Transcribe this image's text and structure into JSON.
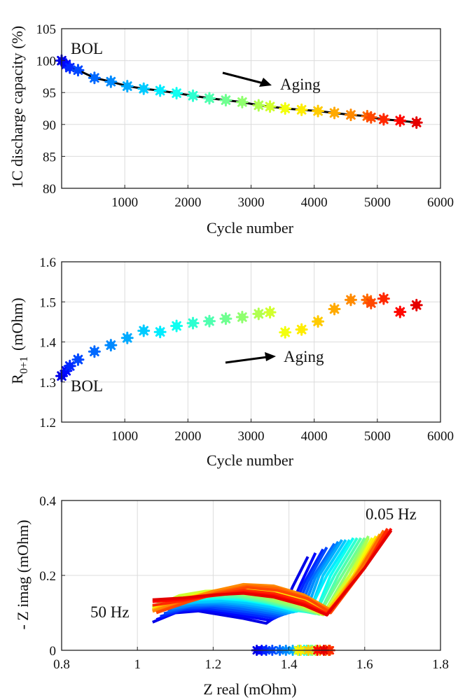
{
  "colors": {
    "bol": "#1010c8",
    "aging": "#ff2a00",
    "baseline": "#000000",
    "jet_scale": [
      "#00008f",
      "#0000ff",
      "#0080ff",
      "#00ffff",
      "#80ff80",
      "#ffff00",
      "#ff8000",
      "#ff0000",
      "#800000"
    ]
  },
  "marker_icon": "asterisk-marker",
  "chart_data": [
    {
      "type": "scatter",
      "xlabel": "Cycle number",
      "ylabel": "1C discharge capacity (%)",
      "xlim": [
        0,
        6000
      ],
      "ylim": [
        80,
        105
      ],
      "xticks": [
        "1000",
        "2000",
        "3000",
        "4000",
        "5000",
        "6000"
      ],
      "yticks": [
        "80",
        "85",
        "90",
        "95",
        "100",
        "105"
      ],
      "grid": true,
      "line": "black line through points",
      "x": [
        0,
        70,
        130,
        260,
        520,
        780,
        1040,
        1300,
        1560,
        1820,
        2080,
        2340,
        2600,
        2860,
        3120,
        3300,
        3540,
        3800,
        4060,
        4320,
        4580,
        4840,
        4900,
        5100,
        5360,
        5620
      ],
      "y": [
        100.0,
        99.4,
        98.9,
        98.5,
        97.3,
        96.7,
        96.0,
        95.6,
        95.3,
        94.9,
        94.5,
        94.1,
        93.8,
        93.5,
        93.0,
        92.8,
        92.5,
        92.3,
        92.1,
        91.8,
        91.5,
        91.3,
        91.1,
        90.8,
        90.6,
        90.3
      ],
      "annotations": [
        {
          "text": "BOL",
          "color": "#1010c8"
        },
        {
          "text": "Aging",
          "color": "#ff2a00"
        }
      ]
    },
    {
      "type": "scatter",
      "xlabel": "Cycle number",
      "ylabel_main": "R",
      "ylabel_sub": "0+1",
      "ylabel_unit": "(mOhm)",
      "xlim": [
        0,
        6000
      ],
      "ylim": [
        1.2,
        1.6
      ],
      "xticks": [
        "1000",
        "2000",
        "3000",
        "4000",
        "5000",
        "6000"
      ],
      "yticks": [
        "1.2",
        "1.3",
        "1.4",
        "1.5",
        "1.6"
      ],
      "grid": true,
      "x": [
        0,
        70,
        130,
        260,
        520,
        780,
        1040,
        1300,
        1560,
        1820,
        2080,
        2340,
        2600,
        2860,
        3120,
        3300,
        3540,
        3800,
        4060,
        4320,
        4580,
        4840,
        4900,
        5100,
        5360,
        5620
      ],
      "y": [
        1.315,
        1.328,
        1.34,
        1.356,
        1.376,
        1.392,
        1.41,
        1.428,
        1.425,
        1.44,
        1.447,
        1.452,
        1.458,
        1.462,
        1.47,
        1.474,
        1.424,
        1.431,
        1.451,
        1.482,
        1.505,
        1.505,
        1.497,
        1.508,
        1.475,
        1.492
      ],
      "annotations": [
        {
          "text": "BOL",
          "color": "#1010c8"
        },
        {
          "text": "Aging",
          "color": "#ff2a00"
        }
      ]
    },
    {
      "type": "line",
      "xlabel": "Z real (mOhm)",
      "ylabel": "- Z imag (mOhm)",
      "xlim": [
        0.8,
        1.8
      ],
      "ylim": [
        0,
        0.4
      ],
      "xticks": [
        "0.8",
        "1",
        "1.2",
        "1.4",
        "1.6",
        "1.8"
      ],
      "yticks": [
        "0",
        "0.2",
        "0.4"
      ],
      "grid": true,
      "series_count": 26,
      "series": [
        {
          "x": [
            1.04,
            1.1,
            1.16,
            1.22,
            1.28,
            1.34,
            1.38,
            1.41,
            1.45
          ],
          "y": [
            0.075,
            0.1,
            0.105,
            0.095,
            0.085,
            0.072,
            0.1,
            0.17,
            0.25
          ]
        },
        {
          "x": [
            1.05,
            1.11,
            1.17,
            1.23,
            1.29,
            1.35,
            1.4,
            1.43,
            1.47
          ],
          "y": [
            0.082,
            0.104,
            0.108,
            0.1,
            0.09,
            0.08,
            0.105,
            0.175,
            0.26
          ]
        },
        {
          "x": [
            1.06,
            1.12,
            1.18,
            1.24,
            1.3,
            1.36,
            1.41,
            1.44,
            1.49
          ],
          "y": [
            0.09,
            0.108,
            0.112,
            0.104,
            0.095,
            0.086,
            0.108,
            0.18,
            0.27
          ]
        },
        {
          "x": [
            1.07,
            1.13,
            1.19,
            1.25,
            1.31,
            1.37,
            1.42,
            1.45,
            1.5
          ],
          "y": [
            0.098,
            0.113,
            0.116,
            0.108,
            0.1,
            0.09,
            0.11,
            0.185,
            0.275
          ]
        },
        {
          "x": [
            1.08,
            1.14,
            1.2,
            1.26,
            1.32,
            1.38,
            1.43,
            1.46,
            1.52
          ],
          "y": [
            0.105,
            0.118,
            0.12,
            0.113,
            0.104,
            0.094,
            0.112,
            0.19,
            0.285
          ]
        },
        {
          "x": [
            1.09,
            1.15,
            1.21,
            1.27,
            1.33,
            1.39,
            1.44,
            1.47,
            1.53
          ],
          "y": [
            0.112,
            0.122,
            0.124,
            0.118,
            0.108,
            0.097,
            0.115,
            0.195,
            0.29
          ]
        },
        {
          "x": [
            1.1,
            1.16,
            1.22,
            1.28,
            1.34,
            1.4,
            1.45,
            1.48,
            1.54
          ],
          "y": [
            0.12,
            0.127,
            0.128,
            0.122,
            0.112,
            0.1,
            0.116,
            0.2,
            0.295
          ]
        },
        {
          "x": [
            1.1,
            1.17,
            1.23,
            1.29,
            1.35,
            1.41,
            1.46,
            1.49,
            1.55
          ],
          "y": [
            0.125,
            0.13,
            0.132,
            0.126,
            0.116,
            0.102,
            0.117,
            0.2,
            0.295
          ]
        },
        {
          "x": [
            1.08,
            1.15,
            1.22,
            1.29,
            1.36,
            1.42,
            1.46,
            1.5,
            1.56
          ],
          "y": [
            0.13,
            0.135,
            0.138,
            0.132,
            0.12,
            0.104,
            0.118,
            0.2,
            0.295
          ]
        },
        {
          "x": [
            1.07,
            1.14,
            1.21,
            1.28,
            1.35,
            1.42,
            1.47,
            1.51,
            1.57
          ],
          "y": [
            0.128,
            0.138,
            0.14,
            0.136,
            0.124,
            0.106,
            0.1,
            0.2,
            0.3
          ]
        },
        {
          "x": [
            1.06,
            1.13,
            1.2,
            1.27,
            1.34,
            1.41,
            1.47,
            1.52,
            1.58
          ],
          "y": [
            0.125,
            0.14,
            0.143,
            0.14,
            0.128,
            0.11,
            0.098,
            0.2,
            0.3
          ]
        },
        {
          "x": [
            1.05,
            1.12,
            1.19,
            1.26,
            1.33,
            1.41,
            1.48,
            1.53,
            1.59
          ],
          "y": [
            0.122,
            0.142,
            0.146,
            0.144,
            0.132,
            0.114,
            0.097,
            0.2,
            0.3
          ]
        },
        {
          "x": [
            1.05,
            1.12,
            1.19,
            1.26,
            1.33,
            1.41,
            1.48,
            1.54,
            1.6
          ],
          "y": [
            0.12,
            0.143,
            0.149,
            0.148,
            0.136,
            0.117,
            0.096,
            0.2,
            0.3
          ]
        },
        {
          "x": [
            1.04,
            1.11,
            1.18,
            1.26,
            1.33,
            1.41,
            1.49,
            1.55,
            1.61
          ],
          "y": [
            0.118,
            0.144,
            0.152,
            0.152,
            0.14,
            0.12,
            0.095,
            0.2,
            0.305
          ]
        },
        {
          "x": [
            1.04,
            1.11,
            1.18,
            1.26,
            1.34,
            1.42,
            1.49,
            1.56,
            1.61
          ],
          "y": [
            0.116,
            0.145,
            0.155,
            0.156,
            0.144,
            0.123,
            0.095,
            0.2,
            0.3
          ]
        },
        {
          "x": [
            1.04,
            1.11,
            1.18,
            1.26,
            1.34,
            1.42,
            1.49,
            1.56,
            1.62
          ],
          "y": [
            0.114,
            0.146,
            0.158,
            0.16,
            0.148,
            0.126,
            0.095,
            0.2,
            0.3
          ]
        },
        {
          "x": [
            1.05,
            1.12,
            1.19,
            1.27,
            1.35,
            1.43,
            1.5,
            1.57,
            1.62
          ],
          "y": [
            0.112,
            0.14,
            0.156,
            0.165,
            0.155,
            0.132,
            0.1,
            0.2,
            0.3
          ]
        },
        {
          "x": [
            1.04,
            1.12,
            1.2,
            1.28,
            1.36,
            1.43,
            1.5,
            1.57,
            1.63
          ],
          "y": [
            0.11,
            0.138,
            0.157,
            0.168,
            0.16,
            0.138,
            0.102,
            0.2,
            0.305
          ]
        },
        {
          "x": [
            1.04,
            1.12,
            1.2,
            1.28,
            1.36,
            1.43,
            1.5,
            1.58,
            1.64
          ],
          "y": [
            0.108,
            0.136,
            0.158,
            0.172,
            0.166,
            0.142,
            0.104,
            0.21,
            0.31
          ]
        },
        {
          "x": [
            1.04,
            1.12,
            1.2,
            1.28,
            1.36,
            1.44,
            1.51,
            1.58,
            1.64
          ],
          "y": [
            0.106,
            0.134,
            0.158,
            0.174,
            0.17,
            0.146,
            0.106,
            0.21,
            0.31
          ]
        },
        {
          "x": [
            1.04,
            1.12,
            1.2,
            1.28,
            1.36,
            1.44,
            1.51,
            1.59,
            1.65
          ],
          "y": [
            0.104,
            0.132,
            0.158,
            0.176,
            0.172,
            0.148,
            0.108,
            0.21,
            0.315
          ]
        },
        {
          "x": [
            1.05,
            1.13,
            1.21,
            1.29,
            1.37,
            1.44,
            1.51,
            1.59,
            1.65
          ],
          "y": [
            0.102,
            0.13,
            0.155,
            0.172,
            0.166,
            0.142,
            0.104,
            0.22,
            0.32
          ]
        },
        {
          "x": [
            1.05,
            1.13,
            1.21,
            1.29,
            1.37,
            1.45,
            1.51,
            1.6,
            1.66
          ],
          "y": [
            0.1,
            0.128,
            0.152,
            0.168,
            0.16,
            0.138,
            0.1,
            0.22,
            0.32
          ]
        },
        {
          "x": [
            1.04,
            1.12,
            1.2,
            1.28,
            1.36,
            1.44,
            1.5,
            1.6,
            1.66
          ],
          "y": [
            0.12,
            0.132,
            0.148,
            0.16,
            0.152,
            0.13,
            0.098,
            0.22,
            0.325
          ]
        },
        {
          "x": [
            1.04,
            1.12,
            1.2,
            1.28,
            1.36,
            1.44,
            1.5,
            1.6,
            1.67
          ],
          "y": [
            0.13,
            0.136,
            0.146,
            0.155,
            0.146,
            0.124,
            0.096,
            0.22,
            0.325
          ]
        },
        {
          "x": [
            1.04,
            1.12,
            1.2,
            1.28,
            1.36,
            1.44,
            1.5,
            1.6,
            1.67
          ],
          "y": [
            0.135,
            0.14,
            0.148,
            0.152,
            0.142,
            0.12,
            0.094,
            0.22,
            0.32
          ]
        }
      ],
      "baseline_points_x": [
        1.315,
        1.328,
        1.34,
        1.356,
        1.376,
        1.392,
        1.41,
        1.428,
        1.425,
        1.44,
        1.447,
        1.452,
        1.458,
        1.462,
        1.47,
        1.474,
        1.424,
        1.431,
        1.451,
        1.482,
        1.505,
        1.505,
        1.497,
        1.508,
        1.475,
        1.492
      ],
      "annotations": [
        {
          "text": "50 Hz",
          "color": "#111111"
        },
        {
          "text": "0.05 Hz",
          "color": "#111111"
        }
      ]
    }
  ]
}
